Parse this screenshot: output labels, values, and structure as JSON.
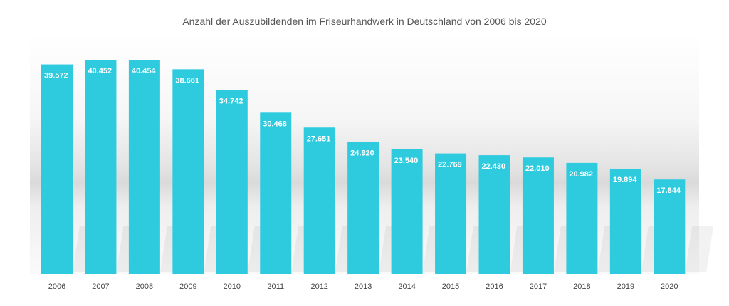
{
  "chart_data": {
    "type": "bar",
    "title": "Anzahl der Auszubildenden im Friseurhandwerk in Deutschland von 2006 bis 2020",
    "xlabel": "",
    "ylabel": "",
    "categories": [
      "2006",
      "2007",
      "2008",
      "2009",
      "2010",
      "2011",
      "2012",
      "2013",
      "2014",
      "2015",
      "2016",
      "2017",
      "2018",
      "2019",
      "2020"
    ],
    "values": [
      39572,
      40452,
      40454,
      38661,
      34742,
      30468,
      27651,
      24920,
      23540,
      22769,
      22430,
      22010,
      20982,
      19894,
      17844
    ],
    "value_labels": [
      "39.572",
      "40.452",
      "40.454",
      "38.661",
      "34.742",
      "30.468",
      "27.651",
      "24.920",
      "23.540",
      "22.769",
      "22.430",
      "22.010",
      "20.982",
      "19.894",
      "17.844"
    ],
    "ylim": [
      0,
      40454
    ],
    "grid": false,
    "legend": "none",
    "colors": {
      "bar": "#2ECBDF",
      "label": "#ffffff",
      "tick": "#444444",
      "title": "#555555"
    }
  }
}
